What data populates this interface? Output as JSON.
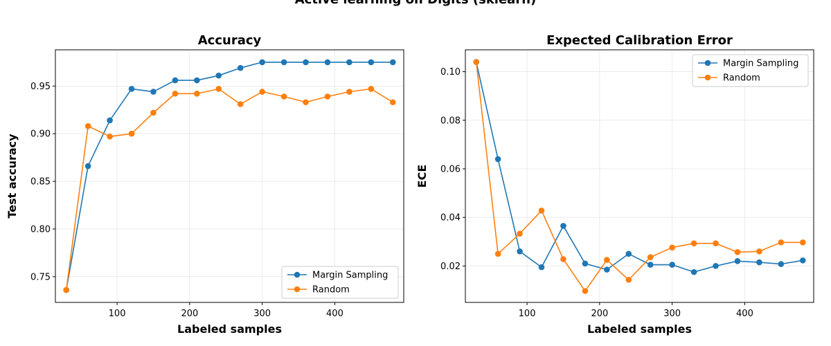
{
  "figure": {
    "suptitle": "Active learning on Digits (sklearn)"
  },
  "colors": {
    "margin": "#1f77b4",
    "random": "#ff7f0e"
  },
  "chart_data": [
    {
      "type": "line",
      "title": "Accuracy",
      "xlabel": "Labeled samples",
      "ylabel": "Test accuracy",
      "xlim": [
        15,
        495
      ],
      "ylim": [
        0.723,
        0.988
      ],
      "xticks": [
        100,
        200,
        300,
        400,
        500
      ],
      "yticks": [
        0.75,
        0.8,
        0.85,
        0.9,
        0.95
      ],
      "ytick_labels": [
        "0.75",
        "0.80",
        "0.85",
        "0.90",
        "0.95"
      ],
      "grid": true,
      "legend_position": "lower-right",
      "x": [
        30,
        60,
        90,
        120,
        150,
        180,
        210,
        240,
        270,
        300,
        330,
        360,
        390,
        420,
        450,
        480
      ],
      "series": [
        {
          "name": "Margin Sampling",
          "color": "#1f77b4",
          "values": [
            0.736,
            0.866,
            0.914,
            0.947,
            0.944,
            0.956,
            0.956,
            0.961,
            0.969,
            0.975,
            0.975,
            0.975,
            0.975,
            0.975,
            0.975,
            0.975
          ]
        },
        {
          "name": "Random",
          "color": "#ff7f0e",
          "values": [
            0.736,
            0.908,
            0.897,
            0.9,
            0.922,
            0.942,
            0.942,
            0.947,
            0.931,
            0.944,
            0.939,
            0.933,
            0.939,
            0.944,
            0.947,
            0.933
          ]
        }
      ]
    },
    {
      "type": "line",
      "title": "Expected Calibration Error",
      "xlabel": "Labeled samples",
      "ylabel": "ECE",
      "xlim": [
        15,
        495
      ],
      "ylim": [
        0.005,
        0.109
      ],
      "xticks": [
        100,
        200,
        300,
        400,
        500
      ],
      "yticks": [
        0.02,
        0.04,
        0.06,
        0.08,
        0.1
      ],
      "ytick_labels": [
        "0.02",
        "0.04",
        "0.06",
        "0.08",
        "0.10"
      ],
      "grid": true,
      "legend_position": "upper-right",
      "x": [
        30,
        60,
        90,
        120,
        150,
        180,
        210,
        240,
        270,
        300,
        330,
        360,
        390,
        420,
        450,
        480
      ],
      "series": [
        {
          "name": "Margin Sampling",
          "color": "#1f77b4",
          "values": [
            0.104,
            0.064,
            0.026,
            0.0195,
            0.0365,
            0.021,
            0.0185,
            0.025,
            0.0205,
            0.0205,
            0.0175,
            0.02,
            0.022,
            0.0215,
            0.0208,
            0.0223
          ]
        },
        {
          "name": "Random",
          "color": "#ff7f0e",
          "values": [
            0.104,
            0.025,
            0.0333,
            0.0428,
            0.0228,
            0.0097,
            0.0225,
            0.0143,
            0.0236,
            0.0276,
            0.0293,
            0.0293,
            0.0257,
            0.026,
            0.0297,
            0.0297
          ]
        }
      ]
    }
  ]
}
